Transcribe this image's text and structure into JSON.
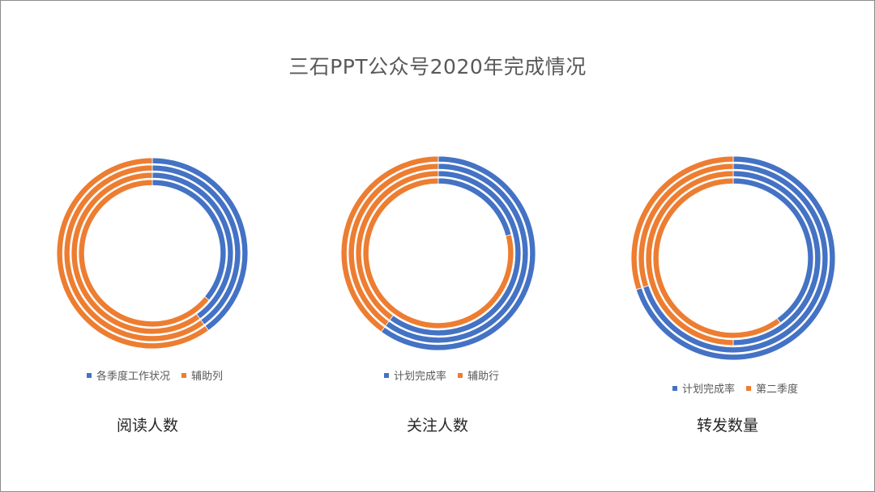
{
  "title": "三石PPT公众号2020年完成情况",
  "colors": {
    "blue": "#4472c4",
    "orange": "#ed7d31"
  },
  "chart_data": [
    {
      "type": "doughnut",
      "caption": "阅读人数",
      "series": [
        {
          "name": "各季度工作状况",
          "values": [
            0.4,
            0.4,
            0.4,
            0.36
          ]
        },
        {
          "name": "辅助列",
          "values": [
            0.6,
            0.6,
            0.6,
            0.64
          ]
        }
      ],
      "ring_count": 4
    },
    {
      "type": "doughnut",
      "caption": "关注人数",
      "series": [
        {
          "name": "计划完成率",
          "values": [
            0.6,
            0.6,
            0.6,
            0.21
          ]
        },
        {
          "name": "辅助行",
          "values": [
            0.4,
            0.4,
            0.4,
            0.79
          ]
        }
      ],
      "ring_count": 4
    },
    {
      "type": "doughnut",
      "caption": "转发数量",
      "series": [
        {
          "name": "计划完成率",
          "values": [
            0.7,
            0.7,
            0.5,
            0.4
          ]
        },
        {
          "name": "第二季度",
          "values": [
            0.3,
            0.3,
            0.5,
            0.6
          ]
        }
      ],
      "ring_count": 4
    }
  ]
}
